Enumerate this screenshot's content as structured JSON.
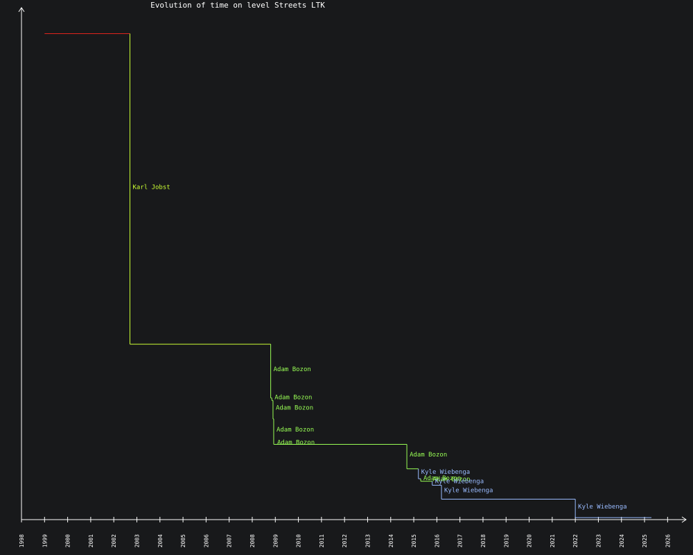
{
  "chart_data": {
    "type": "line",
    "title": "Evolution of time on level Streets LTK",
    "xlabel": "",
    "ylabel": "",
    "xlim": [
      1998,
      2026.5
    ],
    "ylim": [
      0,
      100
    ],
    "grid": false,
    "x_ticks": [
      "1998",
      "1999",
      "2000",
      "2001",
      "2002",
      "2003",
      "2004",
      "2005",
      "2006",
      "2007",
      "2008",
      "2009",
      "2010",
      "2011",
      "2012",
      "2013",
      "2014",
      "2015",
      "2016",
      "2017",
      "2018",
      "2019",
      "2020",
      "2021",
      "2022",
      "2023",
      "2024",
      "2025",
      "2026"
    ],
    "colors": {
      "initial": "#e0241c",
      "karl": "#ccff33",
      "adam": "#99ff55",
      "kyle": "#99bbff",
      "axis": "#ffffff",
      "background": "#18191b"
    },
    "steps": [
      {
        "x": 1999.0,
        "y": 97.5,
        "color": "initial",
        "label": ""
      },
      {
        "x": 2002.7,
        "y": 35.2,
        "color": "karl",
        "label": "Karl Jobst"
      },
      {
        "x": 2008.8,
        "y": 24.4,
        "color": "adam",
        "label": "Adam Bozon"
      },
      {
        "x": 2008.85,
        "y": 23.9,
        "color": "adam",
        "label": "Adam Bozon"
      },
      {
        "x": 2008.9,
        "y": 20.2,
        "color": "adam",
        "label": "Adam Bozon"
      },
      {
        "x": 2008.93,
        "y": 15.1,
        "color": "adam",
        "label": "Adam Bozon"
      },
      {
        "x": 2008.96,
        "y": 15.1,
        "color": "adam",
        "label": "Adam Bozon"
      },
      {
        "x": 2014.7,
        "y": 10.2,
        "color": "adam",
        "label": "Adam Bozon"
      },
      {
        "x": 2015.2,
        "y": 8.2,
        "color": "kyle",
        "label": "Kyle Wiebenga"
      },
      {
        "x": 2015.3,
        "y": 7.7,
        "color": "adam",
        "label": "Adam Bozon"
      },
      {
        "x": 2015.7,
        "y": 7.7,
        "color": "adam",
        "label": "Adam Bozon"
      },
      {
        "x": 2015.8,
        "y": 6.9,
        "color": "kyle",
        "label": "Kyle Wiebenga"
      },
      {
        "x": 2016.2,
        "y": 4.1,
        "color": "kyle",
        "label": "Kyle Wiebenga"
      },
      {
        "x": 2022.0,
        "y": 0.4,
        "color": "kyle",
        "label": "Kyle Wiebenga"
      }
    ],
    "end_x": 2025.3
  }
}
